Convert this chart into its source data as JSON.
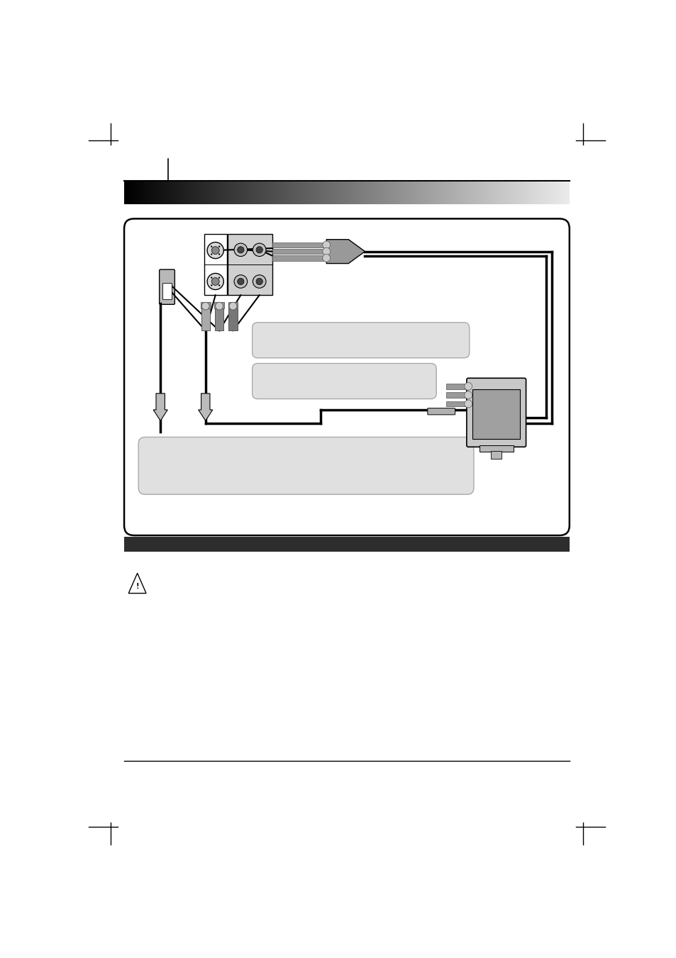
{
  "bg_color": "#ffffff",
  "page_width": 9.54,
  "page_height": 13.51,
  "dark_bar_color": "#2d2d2d",
  "light_gray": "#e2e2e2",
  "mid_gray": "#aaaaaa",
  "cable_color": "#222222",
  "plug_gray": "#888888",
  "plug_light": "#bbbbbb",
  "connector_gray": "#999999"
}
